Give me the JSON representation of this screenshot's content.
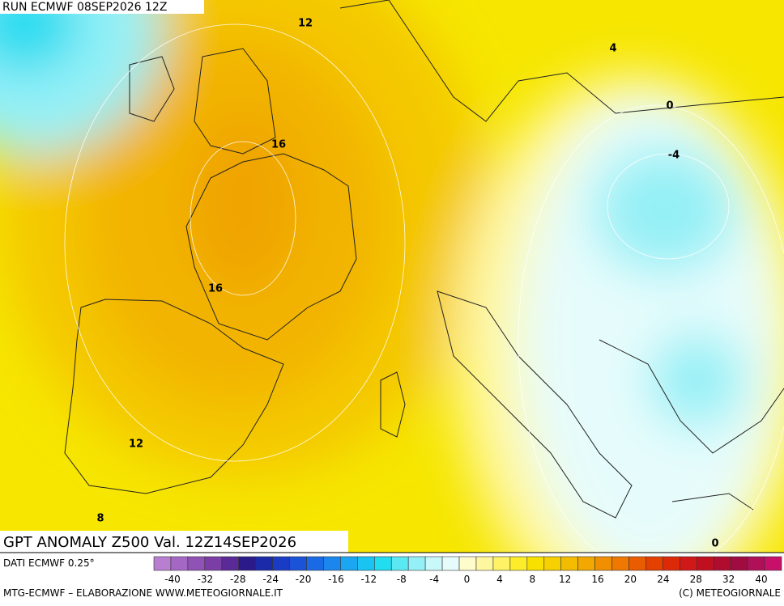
{
  "header": {
    "run": "RUN ECMWF 08SEP2026 12Z"
  },
  "map": {
    "title": "GPT ANOMALY Z500 Val. 12Z14SEP2026",
    "contour_labels": [
      "12",
      "4",
      "0",
      "-4",
      "16",
      "16",
      "12",
      "8",
      "0"
    ]
  },
  "legend": {
    "source": "DATI ECMWF 0.25°",
    "colors": [
      "#b87fd0",
      "#a468c4",
      "#8f52b5",
      "#7b3ea6",
      "#5a2a96",
      "#2a1a8a",
      "#1a2aa8",
      "#1a3cc4",
      "#1a52d8",
      "#1a6ae6",
      "#1a86ee",
      "#1aa6f2",
      "#1ac4f2",
      "#22dcf0",
      "#5ae8f2",
      "#94f0f6",
      "#c8f8fa",
      "#e6fcfc",
      "#fffccc",
      "#fff7a0",
      "#fff266",
      "#fcec2a",
      "#f8e000",
      "#f6d000",
      "#f4bc00",
      "#f2a800",
      "#f09000",
      "#ee7800",
      "#ea5c00",
      "#e44000",
      "#dc2a08",
      "#d01818",
      "#c01020",
      "#b00c30",
      "#a00c40",
      "#b01058",
      "#c8106a"
    ],
    "labels": [
      "-40",
      "-32",
      "-28",
      "-24",
      "-20",
      "-16",
      "-12",
      "-8",
      "-4",
      "0",
      "4",
      "8",
      "12",
      "16",
      "20",
      "24",
      "28",
      "32",
      "40"
    ]
  },
  "footer": {
    "credit": "MTG-ECMWF – ELABORAZIONE WWW.METEOGIORNALE.IT",
    "copyright": "(C) METEOGIORNALE"
  }
}
